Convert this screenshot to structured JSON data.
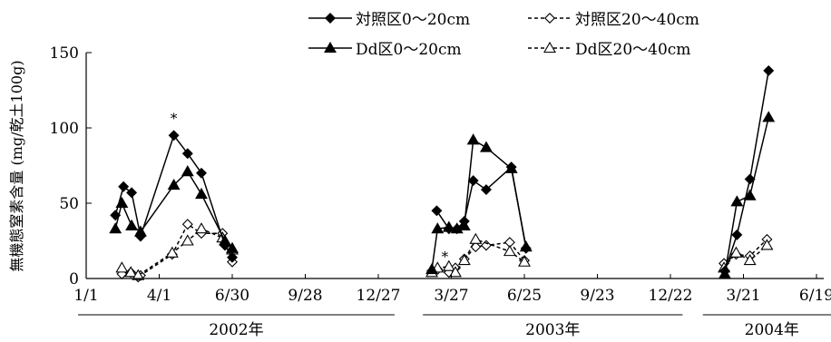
{
  "chart_data": {
    "type": "line",
    "ylabel": "無機態窒素含量 (mg/乾土100g)",
    "ylim": [
      0,
      150
    ],
    "yticks": [
      0,
      50,
      100,
      150
    ],
    "x_tick_labels": [
      "1/1",
      "4/1",
      "6/30",
      "9/28",
      "12/27",
      "3/27",
      "6/25",
      "9/23",
      "12/22",
      "3/21",
      "6/19"
    ],
    "x_tick_days": [
      0,
      90,
      180,
      270,
      360,
      450,
      540,
      630,
      720,
      810,
      900
    ],
    "years": [
      {
        "label": "2002年",
        "from_day": -10,
        "to_day": 380
      },
      {
        "label": "2003年",
        "from_day": 415,
        "to_day": 735
      },
      {
        "label": "2004年",
        "from_day": 760,
        "to_day": 930
      }
    ],
    "annotations": [
      {
        "text": "*",
        "x_day": 108,
        "y": 107
      },
      {
        "text": "*",
        "x_day": 442,
        "y": 15
      }
    ],
    "legend": {
      "placement": "top-right",
      "columns": 2
    },
    "series": [
      {
        "name": "対照区0～20cm",
        "marker": "diamond-filled",
        "dash": "solid",
        "segments": [
          [
            [
              36,
              42
            ],
            [
              46,
              61
            ],
            [
              56,
              57
            ],
            [
              67,
              28
            ],
            [
              108,
              95
            ],
            [
              125,
              83
            ],
            [
              142,
              70
            ],
            [
              171,
              22
            ],
            [
              180,
              14
            ]
          ],
          [
            [
              432,
              45
            ],
            [
              447,
              33
            ],
            [
              457,
              33
            ],
            [
              466,
              38
            ],
            [
              477,
              65
            ],
            [
              493,
              59
            ],
            [
              524,
              74
            ],
            [
              542,
              20
            ]
          ],
          [
            [
              787,
              5
            ],
            [
              802,
              29
            ],
            [
              818,
              66
            ],
            [
              841,
              138
            ]
          ]
        ]
      },
      {
        "name": "対照区20～40cm",
        "marker": "diamond-open",
        "dash": "dashed",
        "segments": [
          [
            [
              44,
              3
            ],
            [
              55,
              4
            ],
            [
              64,
              1
            ],
            [
              67,
              2
            ],
            [
              106,
              16
            ],
            [
              125,
              36
            ],
            [
              142,
              30
            ],
            [
              168,
              30
            ],
            [
              180,
              11
            ]
          ],
          [
            [
              426,
              5
            ],
            [
              433,
              6
            ],
            [
              447,
              4
            ],
            [
              455,
              7
            ],
            [
              466,
              13
            ],
            [
              480,
              21
            ],
            [
              493,
              22
            ],
            [
              522,
              24
            ],
            [
              540,
              12
            ]
          ],
          [
            [
              786,
              10
            ],
            [
              801,
              16
            ],
            [
              818,
              15
            ],
            [
              839,
              26
            ]
          ]
        ]
      },
      {
        "name": "Dd区0～20cm",
        "marker": "triangle-filled",
        "dash": "solid",
        "segments": [
          [
            [
              36,
              33
            ],
            [
              44,
              50
            ],
            [
              56,
              35
            ],
            [
              67,
              31
            ],
            [
              108,
              62
            ],
            [
              125,
              71
            ],
            [
              142,
              56
            ],
            [
              171,
              25
            ],
            [
              180,
              20
            ]
          ],
          [
            [
              426,
              6
            ],
            [
              433,
              33
            ],
            [
              447,
              34
            ],
            [
              457,
              33
            ],
            [
              466,
              35
            ],
            [
              477,
              92
            ],
            [
              493,
              87
            ],
            [
              524,
              73
            ],
            [
              542,
              21
            ]
          ],
          [
            [
              787,
              3
            ],
            [
              802,
              51
            ],
            [
              818,
              55
            ],
            [
              841,
              107
            ]
          ]
        ]
      },
      {
        "name": "Dd区20～40cm",
        "marker": "triangle-open",
        "dash": "dashed",
        "segments": [
          [
            [
              44,
              7
            ],
            [
              55,
              4
            ],
            [
              64,
              2
            ],
            [
              106,
              17
            ],
            [
              125,
              25
            ],
            [
              142,
              33
            ],
            [
              168,
              27
            ],
            [
              180,
              19
            ]
          ],
          [
            [
              426,
              4
            ],
            [
              433,
              7
            ],
            [
              447,
              8
            ],
            [
              455,
              4
            ],
            [
              466,
              12
            ],
            [
              480,
              26
            ],
            [
              522,
              18
            ],
            [
              540,
              11
            ]
          ],
          [
            [
              786,
              7
            ],
            [
              801,
              17
            ],
            [
              818,
              12
            ],
            [
              839,
              22
            ]
          ]
        ]
      }
    ]
  }
}
